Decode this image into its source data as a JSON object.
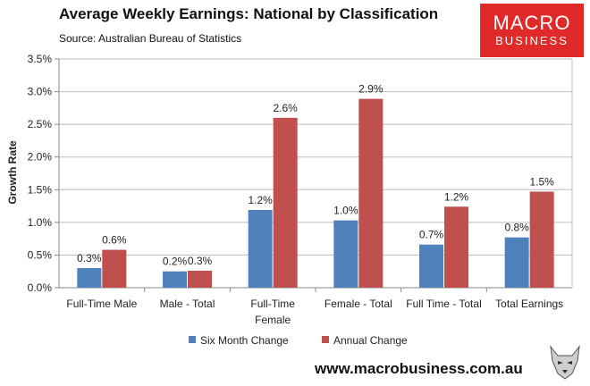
{
  "chart_data": {
    "type": "bar",
    "title": "Average Weekly Earnings: National by Classification",
    "subtitle": "Source: Australian Bureau of Statistics",
    "ylabel": "Growth Rate",
    "xlabel": "",
    "ylim": [
      0,
      3.5
    ],
    "yticks": [
      "0.0%",
      "0.5%",
      "1.0%",
      "1.5%",
      "2.0%",
      "2.5%",
      "3.0%",
      "3.5%"
    ],
    "categories": [
      [
        "Full-Time Male"
      ],
      [
        "Male - Total"
      ],
      [
        "Full-Time",
        "Female"
      ],
      [
        "Female - Total"
      ],
      [
        "Full Time - Total"
      ],
      [
        "Total Earnings"
      ]
    ],
    "series": [
      {
        "name": "Six Month Change",
        "color": "#4f81bd",
        "values": [
          0.3,
          0.25,
          1.19,
          1.03,
          0.66,
          0.77
        ],
        "labels": [
          "0.3%",
          "0.2%",
          "1.2%",
          "1.0%",
          "0.7%",
          "0.8%"
        ]
      },
      {
        "name": "Annual Change",
        "color": "#c0504d",
        "values": [
          0.58,
          0.26,
          2.6,
          2.89,
          1.24,
          1.47
        ],
        "labels": [
          "0.6%",
          "0.3%",
          "2.6%",
          "2.9%",
          "1.2%",
          "1.5%"
        ]
      }
    ],
    "grid": true,
    "legend": "bottom"
  },
  "logo": {
    "line1": "MACRO",
    "line2": "BUSINESS"
  },
  "website": "www.macrobusiness.com.au"
}
